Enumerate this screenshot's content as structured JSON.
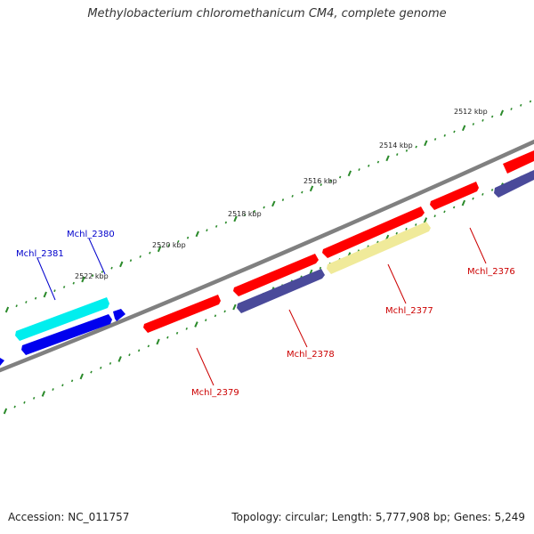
{
  "title": "Methylobacterium chloromethanicum CM4, complete genome",
  "footer": {
    "accession": "Accession: NC_011757",
    "stats": "Topology: circular; Length: 5,777,908 bp; Genes: 5,249"
  },
  "scale_labels": [
    "2512 kbp",
    "2514 kbp",
    "2516 kbp",
    "2518 kbp",
    "2520 kbp",
    "2522 kbp"
  ],
  "gene_labels": [
    {
      "name": "Mchl_2381",
      "color": "#0000cc"
    },
    {
      "name": "Mchl_2380",
      "color": "#0000cc"
    },
    {
      "name": "Mchl_2379",
      "color": "#cc0000"
    },
    {
      "name": "Mchl_2378",
      "color": "#cc0000"
    },
    {
      "name": "Mchl_2377",
      "color": "#cc0000"
    },
    {
      "name": "Mchl_2376",
      "color": "#cc0000"
    }
  ],
  "colors": {
    "backbone": "#808080",
    "tick": "#2a8a2a",
    "red_feature": "#ff0000",
    "blue_feature": "#0000ee",
    "cyan_feature": "#00eeee",
    "slate_feature": "#4a4a9a",
    "yellow_feature": "#f0ea9a"
  }
}
